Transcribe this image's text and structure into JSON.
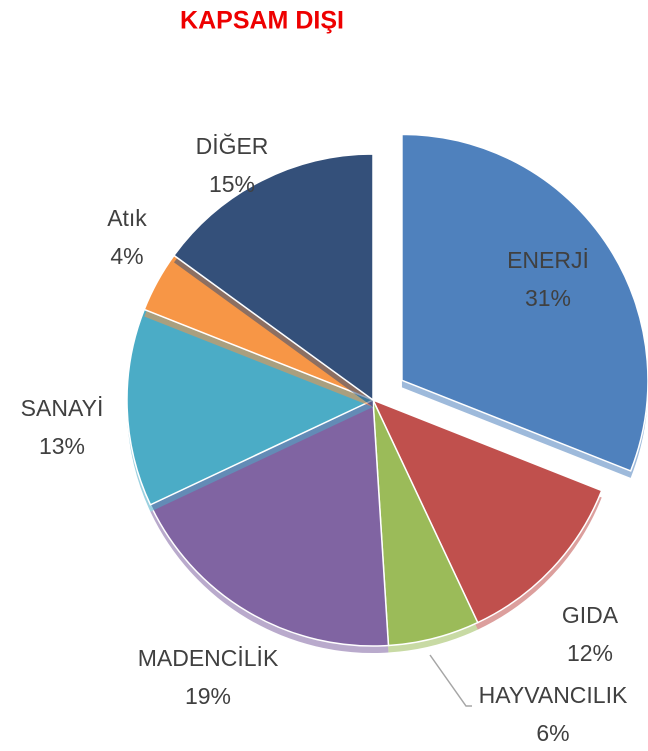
{
  "chart_data": {
    "type": "pie",
    "title": "KAPSAM DIŞI",
    "categories": [
      "ENERJİ",
      "GIDA",
      "HAYVANCILIK",
      "MADENCİLİK",
      "SANAYİ",
      "Atık",
      "DİĞER"
    ],
    "values": [
      31,
      12,
      6,
      19,
      13,
      4,
      15
    ],
    "value_labels": [
      "31%",
      "12%",
      "6%",
      "19%",
      "13%",
      "4%",
      "15%"
    ],
    "colors": [
      "#4f81bd",
      "#c0504d",
      "#9bbb59",
      "#8064a2",
      "#4bacc6",
      "#f79646",
      "#34507a"
    ],
    "exploded": [
      "ENERJİ"
    ]
  }
}
